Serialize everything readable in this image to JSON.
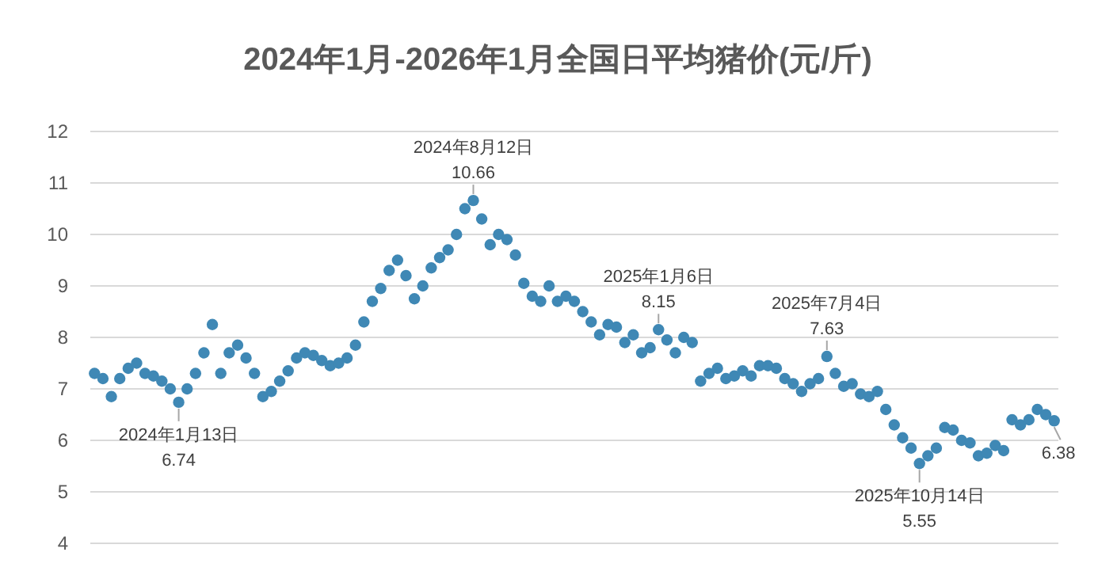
{
  "chart_data": {
    "type": "scatter",
    "title": "2024年1月-2026年1月全国日平均猪价(元/斤)",
    "categories": [
      null,
      null,
      null,
      null,
      null,
      null,
      null,
      null,
      null,
      null,
      null,
      null,
      null,
      null,
      null,
      null,
      null,
      null,
      null,
      null,
      null,
      null,
      null,
      null,
      null,
      null,
      null,
      null,
      null,
      null,
      null,
      null,
      null,
      null,
      null,
      null,
      null,
      null,
      null,
      null,
      null,
      null,
      null,
      null,
      null,
      null,
      null,
      null,
      null,
      null,
      null,
      null,
      null,
      null,
      null,
      null,
      null,
      null,
      null,
      null,
      null,
      null,
      null,
      null,
      null,
      null,
      null,
      null,
      null,
      null,
      null,
      null,
      null,
      null,
      null,
      null,
      null,
      null,
      null,
      null,
      null,
      null,
      null,
      null,
      null,
      null,
      null,
      null,
      null,
      null,
      null,
      null,
      null,
      null,
      null,
      null,
      null,
      null,
      null,
      null,
      null,
      null,
      null,
      null,
      null,
      null,
      null,
      null,
      null,
      null,
      null,
      null,
      null,
      null,
      null
    ],
    "series": [
      {
        "color": "#3f88b5",
        "values": [
          7.3,
          7.2,
          6.85,
          7.2,
          7.4,
          7.5,
          7.3,
          7.25,
          7.15,
          7.0,
          6.74,
          7.0,
          7.3,
          7.7,
          8.25,
          7.3,
          7.7,
          7.85,
          7.6,
          7.3,
          6.85,
          6.95,
          7.15,
          7.35,
          7.6,
          7.7,
          7.65,
          7.55,
          7.45,
          7.5,
          7.6,
          7.85,
          8.3,
          8.7,
          8.95,
          9.3,
          9.5,
          9.2,
          8.75,
          9.0,
          9.35,
          9.55,
          9.7,
          10.0,
          10.5,
          10.66,
          10.3,
          9.8,
          10.0,
          9.9,
          9.6,
          9.05,
          8.8,
          8.7,
          9.0,
          8.7,
          8.8,
          8.7,
          8.5,
          8.3,
          8.05,
          8.25,
          8.2,
          7.9,
          8.05,
          7.7,
          7.8,
          8.15,
          7.95,
          7.7,
          8.0,
          7.9,
          7.15,
          7.3,
          7.4,
          7.2,
          7.25,
          7.35,
          7.25,
          7.45,
          7.45,
          7.4,
          7.2,
          7.1,
          6.95,
          7.1,
          7.2,
          7.63,
          7.3,
          7.05,
          7.1,
          6.9,
          6.85,
          6.95,
          6.6,
          6.3,
          6.05,
          5.85,
          5.55,
          5.7,
          5.85,
          6.25,
          6.2,
          6.0,
          5.95,
          5.7,
          5.75,
          5.9,
          5.8,
          6.4,
          6.3,
          6.4,
          6.6,
          6.5,
          6.38
        ]
      }
    ],
    "ylim": [
      4,
      12
    ],
    "yticks": [
      4,
      5,
      6,
      7,
      8,
      9,
      10,
      11,
      12
    ],
    "grid": "y",
    "marker": "circle",
    "annotations": [
      {
        "text": "2024年1月13日\n6.74",
        "y": 6.74
      },
      {
        "text": "2024年8月12日\n10.66",
        "y": 10.66
      },
      {
        "text": "2025年1月6日\n8.15",
        "y": 8.15
      },
      {
        "text": "2025年7月4日\n7.63",
        "y": 7.63
      },
      {
        "text": "2025年10月14日\n5.55",
        "y": 5.55
      },
      {
        "text": "6.38",
        "y": 6.38
      }
    ]
  }
}
